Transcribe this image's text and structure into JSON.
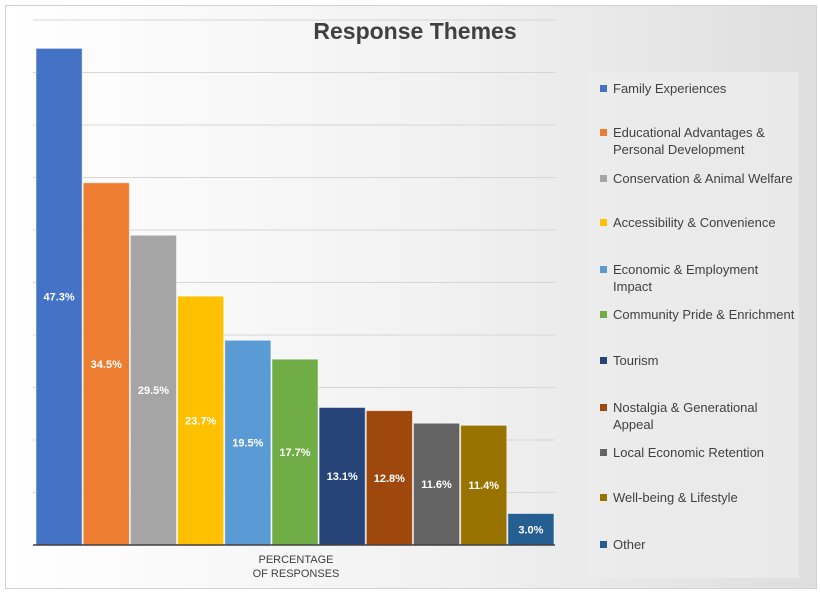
{
  "chart_data": {
    "type": "bar",
    "title": "Response Themes",
    "xlabel": "PERCENTAGE\nOF RESPONSES",
    "ylabel": "",
    "ylim": [
      0,
      50
    ],
    "grid": true,
    "legend_position": "right",
    "series": [
      {
        "name": "Family Experiences",
        "value": 47.3,
        "label": "47.3%",
        "color": "#4472C4"
      },
      {
        "name": "Educational Advantages & Personal Development",
        "value": 34.5,
        "label": "34.5%",
        "color": "#ED7D31"
      },
      {
        "name": "Conservation & Animal Welfare",
        "value": 29.5,
        "label": "29.5%",
        "color": "#A5A5A5"
      },
      {
        "name": "Accessibility & Convenience",
        "value": 23.7,
        "label": "23.7%",
        "color": "#FFC000"
      },
      {
        "name": "Economic & Employment Impact",
        "value": 19.5,
        "label": "19.5%",
        "color": "#5B9BD5"
      },
      {
        "name": "Community Pride & Enrichment",
        "value": 17.7,
        "label": "17.7%",
        "color": "#70AD47"
      },
      {
        "name": "Tourism",
        "value": 13.1,
        "label": "13.1%",
        "color": "#264478"
      },
      {
        "name": "Nostalgia & Generational Appeal",
        "value": 12.8,
        "label": "12.8%",
        "color": "#9E480E"
      },
      {
        "name": "Local Economic Retention",
        "value": 11.6,
        "label": "11.6%",
        "color": "#636363"
      },
      {
        "name": "Well-being & Lifestyle",
        "value": 11.4,
        "label": "11.4%",
        "color": "#997300"
      },
      {
        "name": "Other",
        "value": 3.0,
        "label": "3.0%",
        "color": "#255E91"
      }
    ]
  }
}
